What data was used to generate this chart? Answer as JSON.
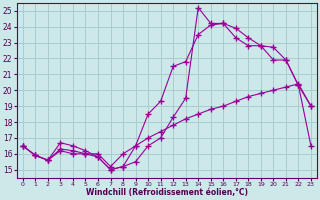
{
  "xlabel": "Windchill (Refroidissement éolien,°C)",
  "bg_color": "#cce8e8",
  "grid_color": "#aacccc",
  "line_color": "#990099",
  "xlim": [
    -0.5,
    23.5
  ],
  "ylim": [
    14.5,
    25.5
  ],
  "xticks": [
    0,
    1,
    2,
    3,
    4,
    5,
    6,
    7,
    8,
    9,
    10,
    11,
    12,
    13,
    14,
    15,
    16,
    17,
    18,
    19,
    20,
    21,
    22,
    23
  ],
  "yticks": [
    15,
    16,
    17,
    18,
    19,
    20,
    21,
    22,
    23,
    24,
    25
  ],
  "series1_x": [
    0,
    1,
    2,
    3,
    4,
    5,
    6,
    7,
    8,
    9,
    10,
    11,
    12,
    13,
    14,
    15,
    16,
    17,
    18,
    19,
    20,
    21,
    22,
    23
  ],
  "series1_y": [
    16.5,
    15.9,
    15.6,
    16.7,
    16.5,
    16.2,
    15.8,
    15.0,
    15.2,
    15.5,
    16.5,
    17.0,
    18.3,
    19.5,
    25.2,
    24.2,
    24.2,
    23.9,
    23.3,
    22.8,
    21.9,
    21.9,
    20.3,
    16.5
  ],
  "series2_x": [
    0,
    1,
    2,
    3,
    4,
    5,
    6,
    7,
    8,
    9,
    10,
    11,
    12,
    13,
    14,
    15,
    16,
    17,
    18,
    19,
    20,
    21,
    22,
    23
  ],
  "series2_y": [
    16.5,
    15.9,
    15.6,
    16.3,
    16.2,
    16.0,
    15.8,
    15.0,
    15.2,
    16.5,
    18.5,
    19.3,
    21.5,
    21.8,
    23.5,
    24.1,
    24.2,
    23.3,
    22.8,
    22.8,
    22.7,
    21.9,
    20.3,
    19.0
  ],
  "series3_x": [
    0,
    1,
    2,
    3,
    4,
    5,
    6,
    7,
    8,
    9,
    10,
    11,
    12,
    13,
    14,
    15,
    16,
    17,
    18,
    19,
    20,
    21,
    22,
    23
  ],
  "series3_y": [
    16.5,
    15.9,
    15.6,
    16.2,
    16.0,
    16.0,
    16.0,
    15.2,
    16.0,
    16.5,
    17.0,
    17.4,
    17.8,
    18.2,
    18.5,
    18.8,
    19.0,
    19.3,
    19.6,
    19.8,
    20.0,
    20.2,
    20.4,
    19.0
  ]
}
